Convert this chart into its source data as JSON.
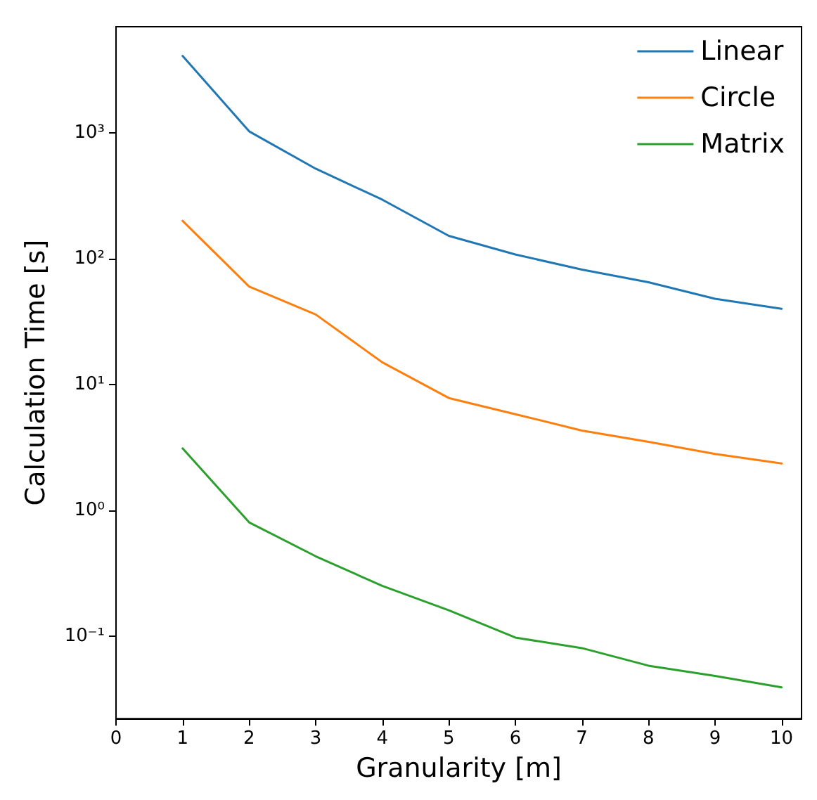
{
  "chart_data": {
    "type": "line",
    "xlabel": "Granularity [m]",
    "ylabel": "Calculation Time [s]",
    "log": "y",
    "legend": "top right",
    "x": [
      1,
      2,
      3,
      4,
      5,
      6,
      7,
      8,
      9,
      10
    ],
    "xlim": [
      0,
      10.3
    ],
    "xticks": [
      0,
      1,
      2,
      3,
      4,
      5,
      6,
      7,
      8,
      9,
      10
    ],
    "ylim": [
      0.022,
      7000
    ],
    "yticks": [
      {
        "value": 0.1,
        "label": "10⁻¹"
      },
      {
        "value": 1,
        "label": "10⁰"
      },
      {
        "value": 10,
        "label": "10¹"
      },
      {
        "value": 100,
        "label": "10²"
      },
      {
        "value": 1000,
        "label": "10³"
      }
    ],
    "series": [
      {
        "name": "Linear",
        "color": "#1f77b4",
        "values": [
          4100,
          1030,
          520,
          295,
          152,
          108,
          82,
          65,
          48,
          40
        ]
      },
      {
        "name": "Circle",
        "color": "#ff7f0e",
        "values": [
          200,
          60,
          36,
          15,
          7.8,
          5.8,
          4.3,
          3.5,
          2.8,
          2.35
        ]
      },
      {
        "name": "Matrix",
        "color": "#2ca02c",
        "values": [
          3.1,
          0.8,
          0.43,
          0.25,
          0.16,
          0.097,
          0.08,
          0.058,
          0.048,
          0.039
        ]
      }
    ]
  }
}
